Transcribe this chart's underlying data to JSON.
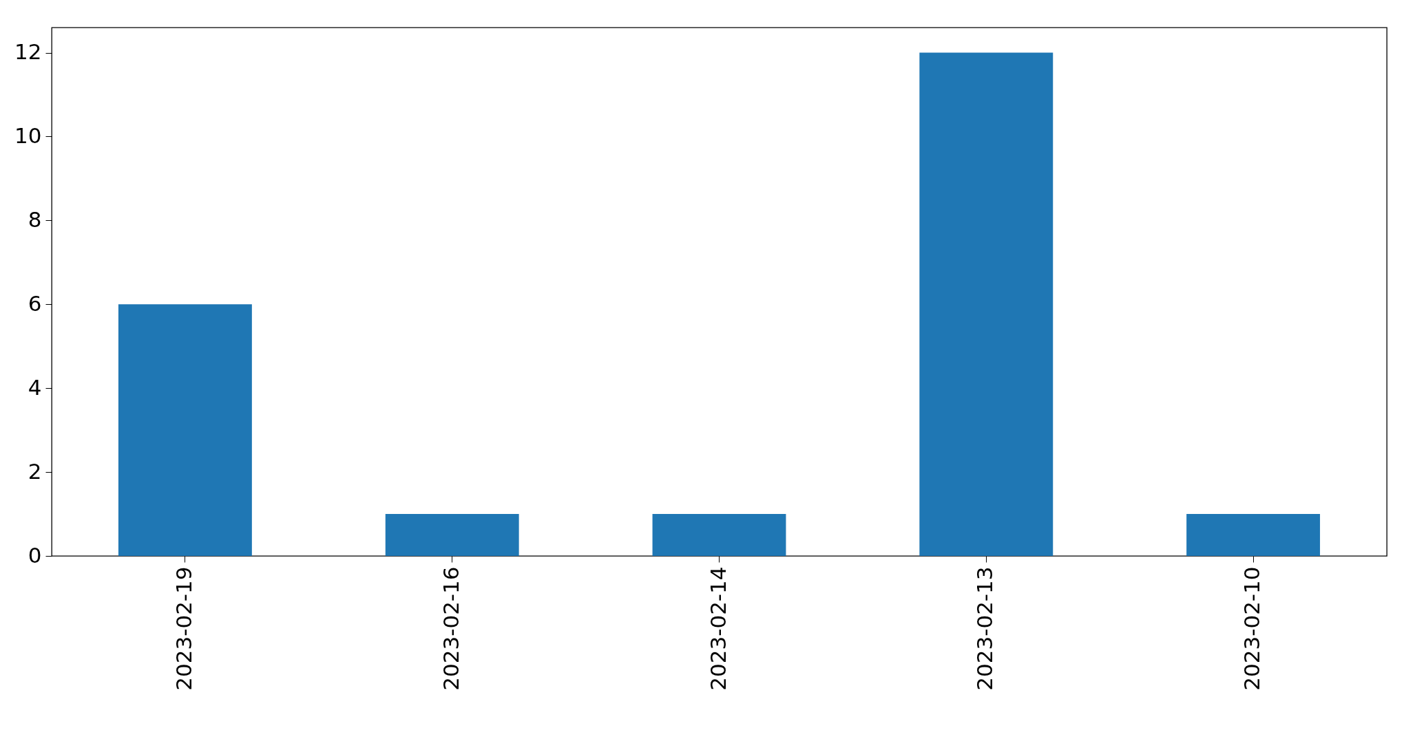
{
  "chart_data": {
    "type": "bar",
    "categories": [
      "2023-02-19",
      "2023-02-16",
      "2023-02-14",
      "2023-02-13",
      "2023-02-10"
    ],
    "values": [
      6,
      1,
      1,
      12,
      1
    ],
    "color": "#1f77b4",
    "ylim": [
      0,
      12.6
    ],
    "yticks": [
      0,
      2,
      4,
      6,
      8,
      10,
      12
    ],
    "grid": false
  }
}
